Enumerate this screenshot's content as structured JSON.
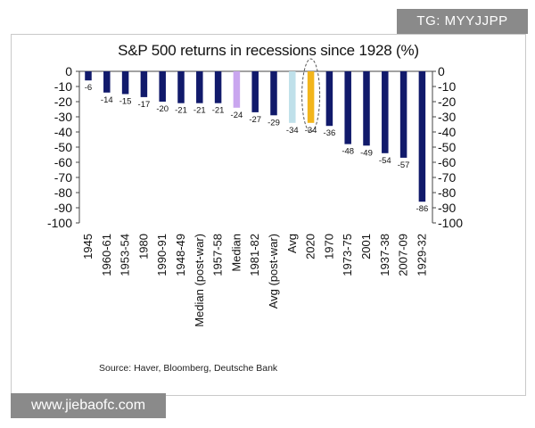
{
  "watermark_top": "TG: MYYJJPP",
  "watermark_bottom": "www.jiebaofc.com",
  "source": "Source: Haver, Bloomberg, Deutsche Bank",
  "colors": {
    "bar": "#111a6b",
    "median_bar": "#c9a6ef",
    "avg_bar": "#bfe0ea",
    "highlight_bar": "#f2b51c",
    "highlight_ring": "#555555",
    "axis": "#444444"
  },
  "chart_data": {
    "type": "bar",
    "title": "S&P 500 returns in recessions since 1928 (%)",
    "xlabel": "",
    "ylabel": "",
    "ylim": [
      -100,
      0
    ],
    "yticks": [
      0,
      -10,
      -20,
      -30,
      -40,
      -50,
      -60,
      -70,
      -80,
      -90,
      -100
    ],
    "categories": [
      "1945",
      "1960-61",
      "1953-54",
      "1980",
      "1990-91",
      "1948-49",
      "Median (post-war)",
      "1957-58",
      "Median",
      "1981-82",
      "Avg (post-war)",
      "Avg",
      "2020",
      "1970",
      "1973-75",
      "2001",
      "1937-38",
      "2007-09",
      "1929-32"
    ],
    "values": [
      -6,
      -14,
      -15,
      -17,
      -20,
      -21,
      -21,
      -21,
      -24,
      -27,
      -29,
      -34,
      -34,
      -36,
      -48,
      -49,
      -54,
      -57,
      -86
    ],
    "bar_types": [
      "normal",
      "normal",
      "normal",
      "normal",
      "normal",
      "normal",
      "normal",
      "normal",
      "median",
      "normal",
      "normal",
      "avg",
      "highlight",
      "normal",
      "normal",
      "normal",
      "normal",
      "normal",
      "normal"
    ],
    "highlighted_category": "2020"
  }
}
